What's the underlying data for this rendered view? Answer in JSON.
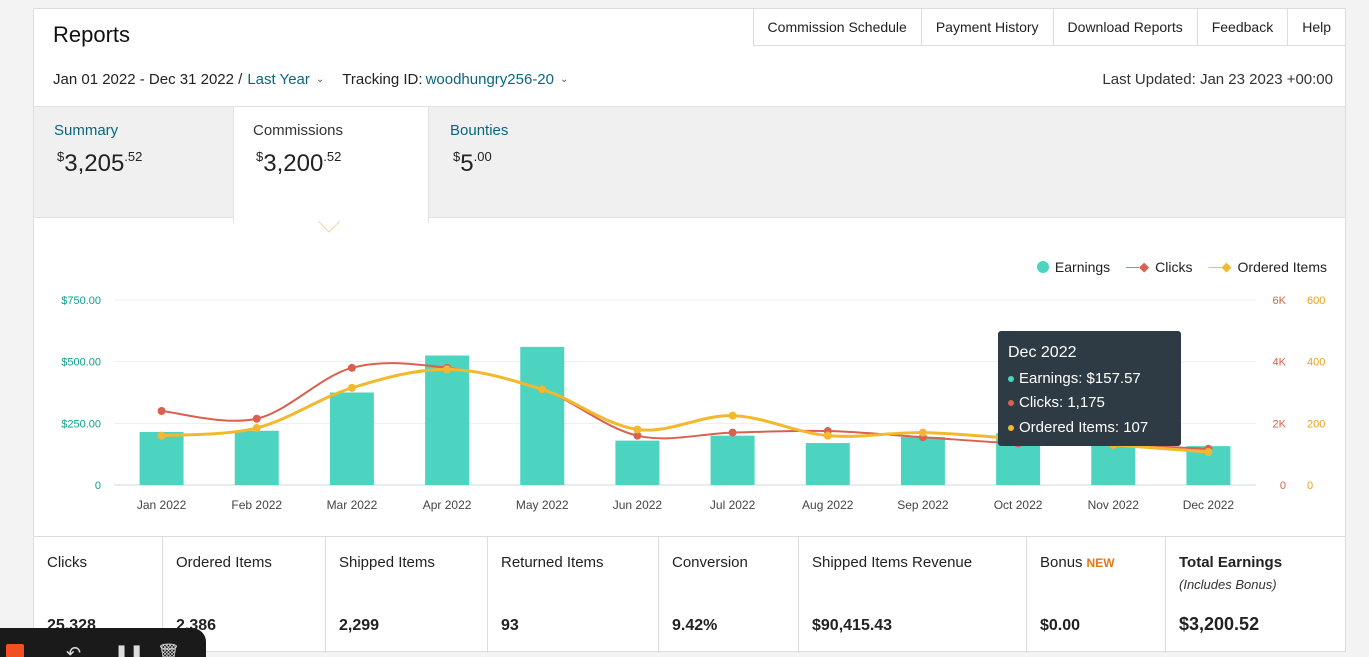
{
  "header": {
    "title": "Reports",
    "nav": [
      "Commission Schedule",
      "Payment History",
      "Download Reports",
      "Feedback",
      "Help"
    ]
  },
  "filters": {
    "date_range": "Jan 01 2022 - Dec 31 2022 /",
    "period": "Last Year",
    "tracking_label": "Tracking ID:",
    "tracking_id": "woodhungry256-20",
    "last_updated": "Last Updated: Jan 23 2023 +00:00"
  },
  "tabs": [
    {
      "label": "Summary",
      "value_main": "3,205",
      "value_cents": "52",
      "currency": "$"
    },
    {
      "label": "Commissions",
      "value_main": "3,200",
      "value_cents": "52",
      "currency": "$"
    },
    {
      "label": "Bounties",
      "value_main": "5",
      "value_cents": "00",
      "currency": "$"
    }
  ],
  "chart_data": {
    "type": "bar",
    "categories": [
      "Jan 2022",
      "Feb 2022",
      "Mar 2022",
      "Apr 2022",
      "May 2022",
      "Jun 2022",
      "Jul 2022",
      "Aug 2022",
      "Sep 2022",
      "Oct 2022",
      "Nov 2022",
      "Dec 2022"
    ],
    "series": [
      {
        "name": "Earnings",
        "type": "bar",
        "axis": "left",
        "color": "#4dd4c0",
        "values": [
          215,
          220,
          375,
          525,
          560,
          180,
          200,
          170,
          195,
          210,
          200,
          157.57
        ]
      },
      {
        "name": "Clicks",
        "type": "line",
        "axis": "right1",
        "color": "#d9614f",
        "values": [
          2400,
          2150,
          3800,
          3800,
          3100,
          1600,
          1700,
          1750,
          1550,
          1350,
          1300,
          1175
        ]
      },
      {
        "name": "Ordered Items",
        "type": "line",
        "axis": "right2",
        "color": "#f2b92e",
        "values": [
          160,
          185,
          315,
          375,
          310,
          180,
          225,
          160,
          170,
          150,
          130,
          107
        ]
      }
    ],
    "left_axis": {
      "ticks": [
        "0",
        "$250.00",
        "$500.00",
        "$750.00"
      ],
      "range": [
        0,
        750
      ],
      "color": "#0b9e8e"
    },
    "right_axis_1": {
      "ticks": [
        "0",
        "2K",
        "4K",
        "6K"
      ],
      "range": [
        0,
        6000
      ],
      "color": "#d9614f"
    },
    "right_axis_2": {
      "ticks": [
        "0",
        "200",
        "400",
        "600"
      ],
      "range": [
        0,
        600
      ],
      "color": "#e9a115"
    },
    "grid": true,
    "legend_position": "top-right"
  },
  "tooltip": {
    "title": "Dec 2022",
    "earnings": "Earnings: $157.57",
    "clicks": "Clicks: 1,175",
    "ordered": "Ordered Items: 107"
  },
  "metrics": [
    {
      "label": "Clicks",
      "value": "25,328"
    },
    {
      "label": "Ordered Items",
      "value": "2,386"
    },
    {
      "label": "Shipped Items",
      "value": "2,299"
    },
    {
      "label": "Returned Items",
      "value": "93"
    },
    {
      "label": "Conversion",
      "value": "9.42%"
    },
    {
      "label": "Shipped Items Revenue",
      "value": "$90,415.43"
    },
    {
      "label": "Bonus",
      "badge": "NEW",
      "value": "$0.00"
    },
    {
      "label": "Total Earnings",
      "sub": "(Includes Bonus)",
      "value": "$3,200.52"
    }
  ]
}
